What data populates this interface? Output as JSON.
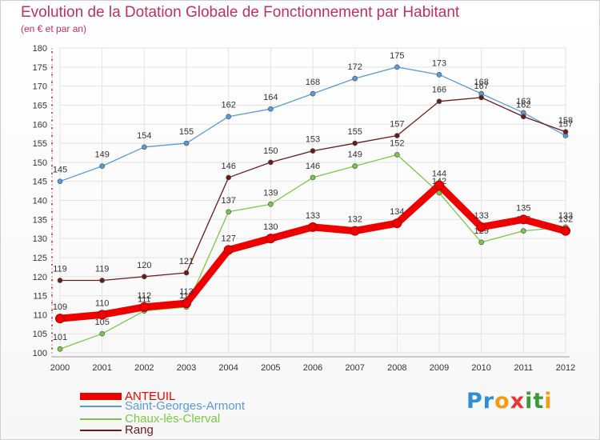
{
  "chart_data": {
    "type": "line",
    "title": "Evolution de la Dotation Globale de Fonctionnement par Habitant",
    "subtitle": "(en € et par an)",
    "xlabel": "",
    "ylabel": "",
    "categories": [
      "2000",
      "2001",
      "2002",
      "2003",
      "2004",
      "2005",
      "2006",
      "2007",
      "2008",
      "2009",
      "2010",
      "2011",
      "2012"
    ],
    "ylim": [
      100,
      180
    ],
    "yticks": [
      100,
      105,
      110,
      115,
      120,
      125,
      130,
      135,
      140,
      145,
      150,
      155,
      160,
      165,
      170,
      175,
      180
    ],
    "grid": true,
    "series": [
      {
        "name": "Saint-Georges-Armont",
        "color": "#5b9bd5",
        "values": [
          145,
          149,
          154,
          155,
          162,
          164,
          168,
          172,
          175,
          173,
          168,
          163,
          157
        ]
      },
      {
        "name": "Rang",
        "color": "#6b1a1a",
        "values": [
          119,
          119,
          120,
          121,
          146,
          150,
          153,
          155,
          157,
          166,
          167,
          162,
          158
        ]
      },
      {
        "name": "Chaux-lès-Clerval",
        "color": "#7ac943",
        "values": [
          101,
          105,
          111,
          112,
          137,
          139,
          146,
          149,
          152,
          142,
          129,
          132,
          133
        ]
      },
      {
        "name": "ANTEUIL",
        "color": "#ee0000",
        "values": [
          109,
          110,
          112,
          113,
          127,
          130,
          133,
          132,
          134,
          144,
          133,
          135,
          132
        ]
      }
    ]
  },
  "legend": [
    {
      "label": "ANTEUIL",
      "color": "#ee0000"
    },
    {
      "label": "Saint-Georges-Armont",
      "color": "#5b9bd5"
    },
    {
      "label": "Chaux-lès-Clerval",
      "color": "#7ac943"
    },
    {
      "label": "Rang",
      "color": "#6b1a1a"
    }
  ],
  "brand": {
    "letters": [
      {
        "ch": "P",
        "color": "#2e8fd6"
      },
      {
        "ch": "r",
        "color": "#2e8fd6"
      },
      {
        "ch": "o",
        "color": "#f39c12"
      },
      {
        "ch": "x",
        "color": "#e53935"
      },
      {
        "ch": "i",
        "color": "#3a9a3a"
      },
      {
        "ch": "t",
        "color": "#3a9a3a"
      },
      {
        "ch": "i",
        "color": "#f39c12"
      }
    ]
  }
}
